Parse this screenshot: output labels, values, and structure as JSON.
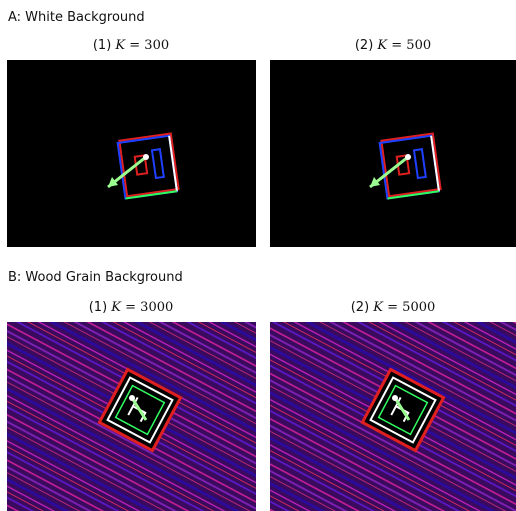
{
  "sections": [
    {
      "title": "A: White Background",
      "panels": [
        {
          "index": "(1)",
          "symbol": "K",
          "equation": "= 300"
        },
        {
          "index": "(2)",
          "symbol": "K",
          "equation": "= 500"
        }
      ]
    },
    {
      "title": "B: Wood Grain Background",
      "panels": [
        {
          "index": "(1)",
          "symbol": "K",
          "equation": "= 3000"
        },
        {
          "index": "(2)",
          "symbol": "K",
          "equation": "= 5000"
        }
      ]
    }
  ]
}
